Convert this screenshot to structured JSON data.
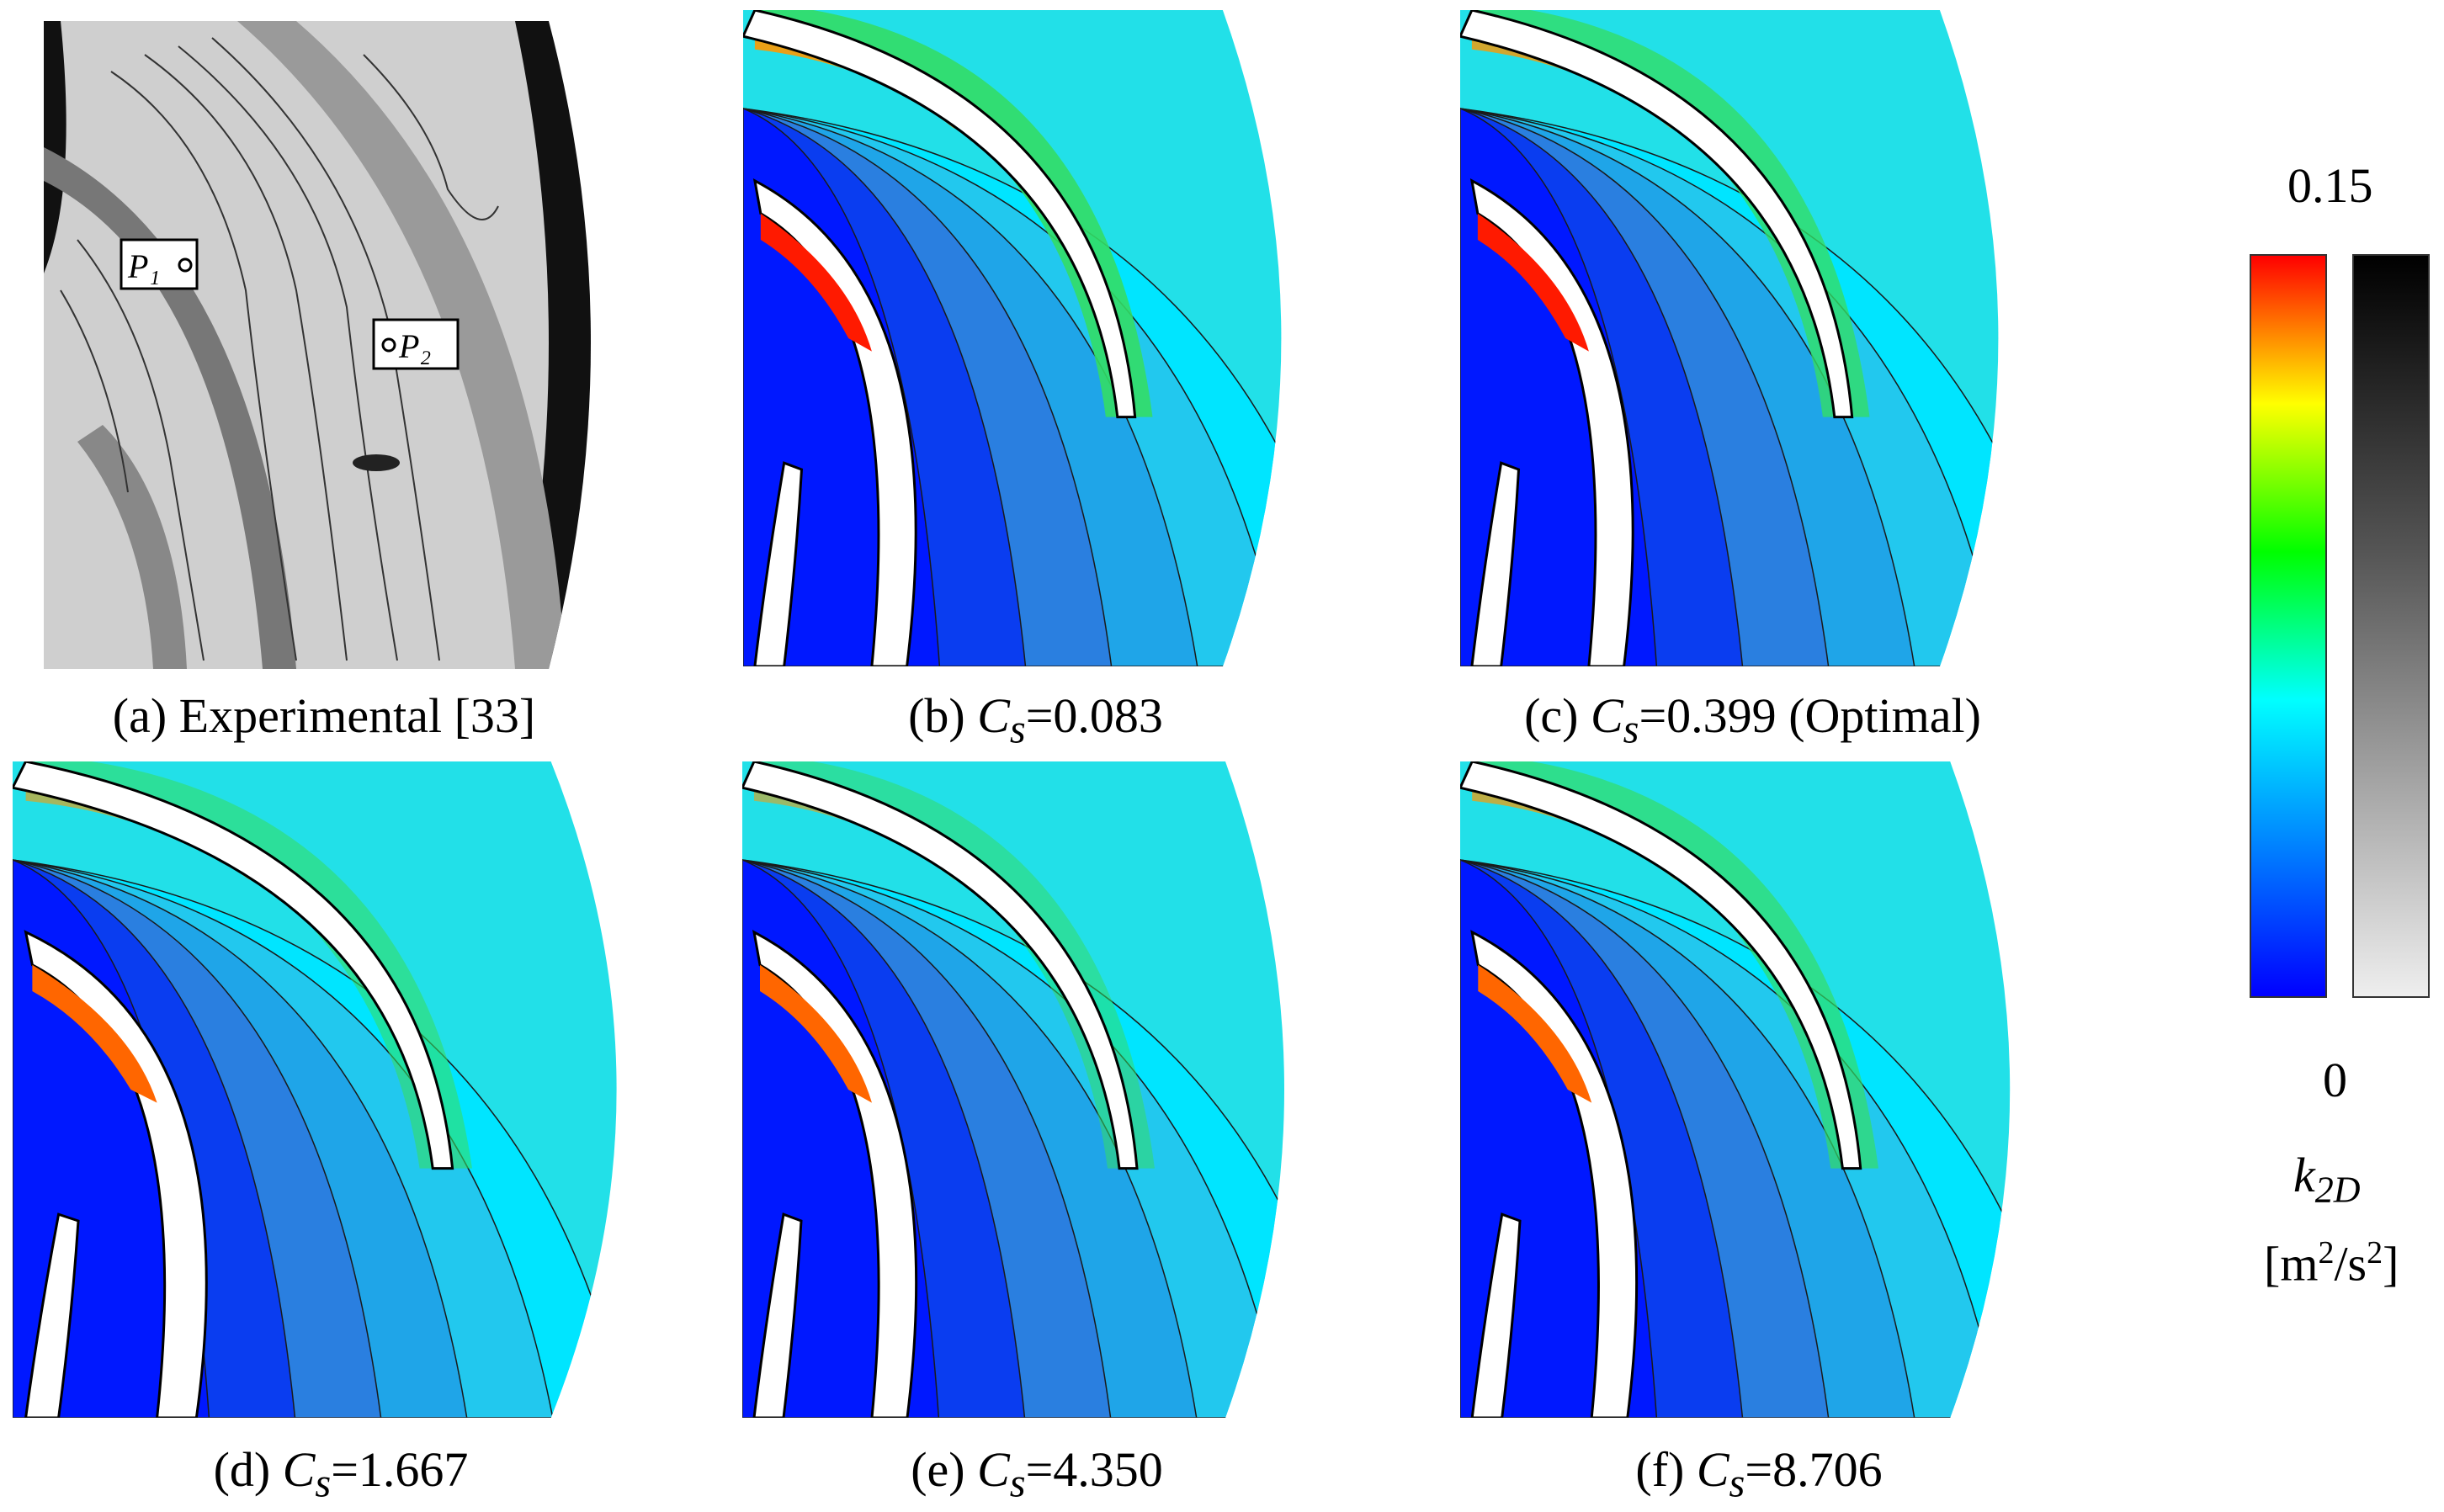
{
  "figure": {
    "panels": [
      {
        "id": "a",
        "label": "(a) Experimental [33]",
        "kind": "experimental",
        "points": [
          "P1",
          "P2"
        ]
      },
      {
        "id": "b",
        "prefix": "(b) ",
        "symbol": "C",
        "subscript": "s",
        "value": "=0.083",
        "suffix": ""
      },
      {
        "id": "c",
        "prefix": "(c) ",
        "symbol": "C",
        "subscript": "s",
        "value": "=0.399",
        "suffix": " (Optimal)"
      },
      {
        "id": "d",
        "prefix": "(d) ",
        "symbol": "C",
        "subscript": "s",
        "value": "=1.667",
        "suffix": ""
      },
      {
        "id": "e",
        "prefix": "(e) ",
        "symbol": "C",
        "subscript": "s",
        "value": "=4.350",
        "suffix": ""
      },
      {
        "id": "f",
        "prefix": "(f) ",
        "symbol": "C",
        "subscript": "s",
        "value": "=8.706",
        "suffix": ""
      }
    ],
    "colorbar": {
      "max": "0.15",
      "min": "0",
      "variable": "k",
      "variable_sub": "2D",
      "unit_open": "[m",
      "unit_sup1": "2",
      "unit_mid": "/s",
      "unit_sup2": "2",
      "unit_close": "]",
      "colors": [
        "#0000ff",
        "#0080ff",
        "#00ffff",
        "#00ff00",
        "#ffff00",
        "#ff0000"
      ]
    }
  }
}
